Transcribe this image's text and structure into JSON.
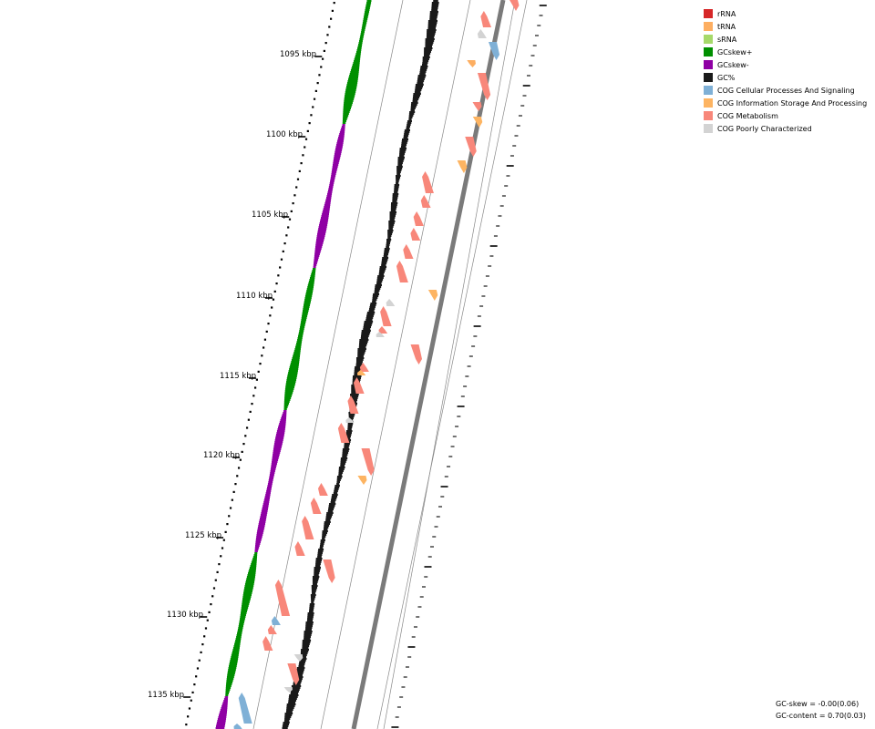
{
  "legend": [
    {
      "label": "rRNA",
      "color": "#d62728"
    },
    {
      "label": "tRNA",
      "color": "#fdae61"
    },
    {
      "label": "sRNA",
      "color": "#a6d96a"
    },
    {
      "label": "GCskew+",
      "color": "#008f00"
    },
    {
      "label": "GCskew-",
      "color": "#8f00a4"
    },
    {
      "label": "GC%",
      "color": "#1a1a1a"
    },
    {
      "label": "COG Cellular Processes And Signaling",
      "color": "#7fb0d6"
    },
    {
      "label": "COG Information Storage And Processing",
      "color": "#fdb462"
    },
    {
      "label": "COG Metabolism",
      "color": "#f8877a"
    },
    {
      "label": "COG Poorly Characterized",
      "color": "#d3d3d3"
    }
  ],
  "axis": {
    "unit": "kbp",
    "labels": [
      "1095 kbp",
      "1100 kbp",
      "1105 kbp",
      "1110 kbp",
      "1115 kbp",
      "1120 kbp",
      "1125 kbp",
      "1130 kbp",
      "1135 kbp"
    ]
  },
  "stats": {
    "gc_skew": "GC-skew = -0.00(0.06)",
    "gc_content": "GC-content = 0.70(0.03)"
  }
}
